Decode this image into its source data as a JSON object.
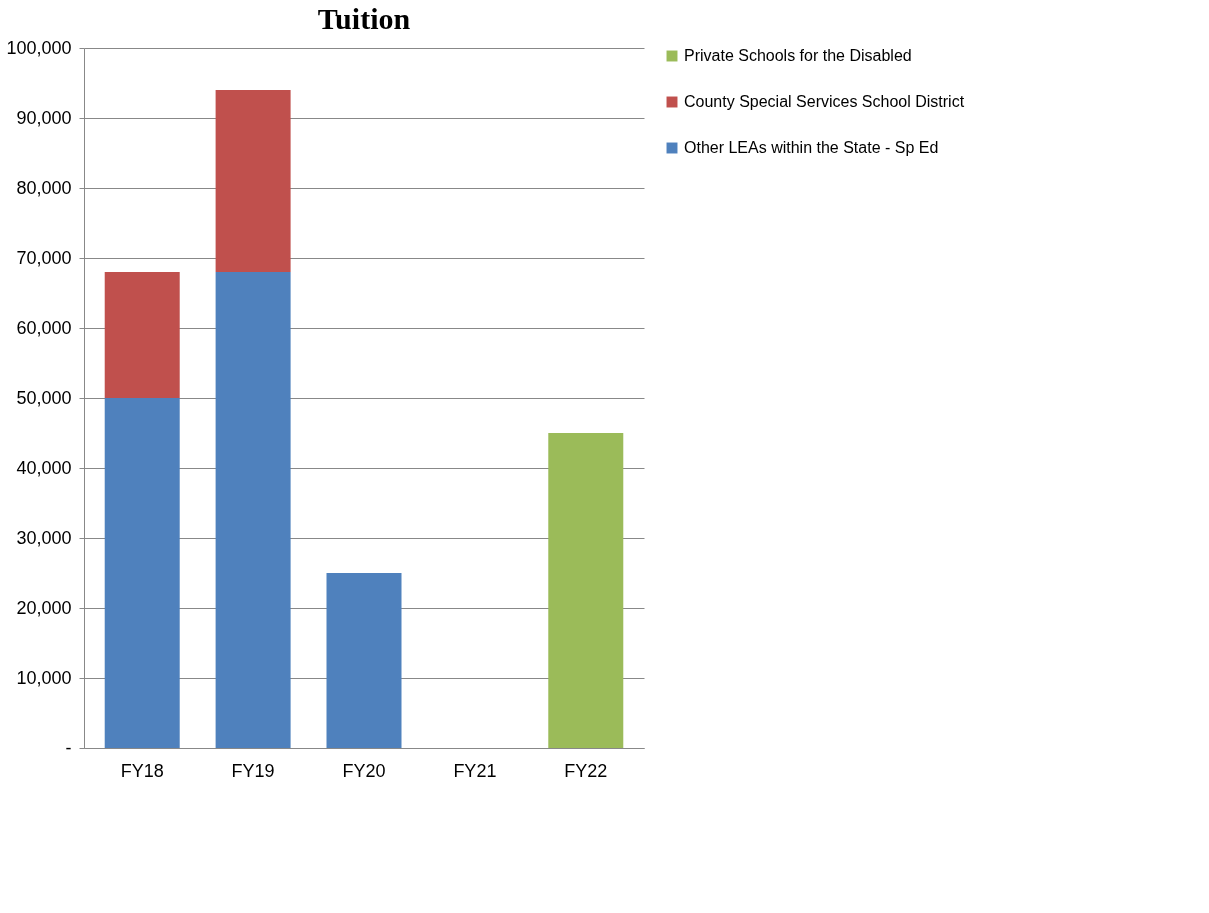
{
  "chart_data": {
    "type": "bar",
    "title": "Tuition",
    "stacked": true,
    "categories": [
      "FY18",
      "FY19",
      "FY20",
      "FY21",
      "FY22"
    ],
    "series": [
      {
        "name": "Other LEAs within the State - Sp Ed",
        "color": "#4f81bd",
        "values": [
          50000,
          68000,
          25000,
          0,
          0
        ]
      },
      {
        "name": "County Special Services School District",
        "color": "#c0504d",
        "values": [
          18000,
          26000,
          0,
          0,
          0
        ]
      },
      {
        "name": "Private Schools for the Disabled",
        "color": "#9bbb59",
        "values": [
          0,
          0,
          0,
          0,
          45000
        ]
      }
    ],
    "ylim": [
      0,
      100000
    ],
    "yticks": [
      {
        "value": 0,
        "label": "-"
      },
      {
        "value": 10000,
        "label": "10,000"
      },
      {
        "value": 20000,
        "label": "20,000"
      },
      {
        "value": 30000,
        "label": "30,000"
      },
      {
        "value": 40000,
        "label": "40,000"
      },
      {
        "value": 50000,
        "label": "50,000"
      },
      {
        "value": 60000,
        "label": "60,000"
      },
      {
        "value": 70000,
        "label": "70,000"
      },
      {
        "value": 80000,
        "label": "80,000"
      },
      {
        "value": 90000,
        "label": "90,000"
      },
      {
        "value": 100000,
        "label": "100,000"
      }
    ],
    "grid": "y",
    "legend": "right"
  }
}
